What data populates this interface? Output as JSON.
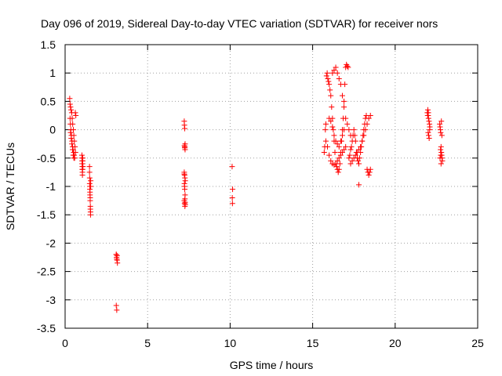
{
  "chart_data": {
    "type": "scatter",
    "title": "Day 096 of 2019, Sidereal Day-to-day VTEC variation (SDTVAR) for receiver nors",
    "xlabel": "GPS time / hours",
    "ylabel": "SDTVAR / TECUs",
    "xlim": [
      0,
      25
    ],
    "ylim": [
      -3.5,
      1.5
    ],
    "xticks": [
      0,
      5,
      10,
      15,
      20,
      25
    ],
    "yticks": [
      -3.5,
      -3,
      -2.5,
      -2,
      -1.5,
      -1,
      -0.5,
      0,
      0.5,
      1,
      1.5
    ],
    "xtick_labels": [
      "0",
      "5",
      "10",
      "15",
      "20",
      "25"
    ],
    "ytick_labels": [
      "-3.5",
      "-3",
      "-2.5",
      "-2",
      "-1.5",
      "-1",
      "-0.5",
      "0",
      "0.5",
      "1",
      "1.5"
    ],
    "grid": true,
    "marker": "+",
    "color": "#ff0000",
    "series": [
      {
        "name": "SDTVAR",
        "x": [
          0.28,
          0.3,
          0.33,
          0.36,
          0.4,
          0.43,
          0.46,
          0.5,
          0.53,
          0.56,
          0.6,
          0.63,
          0.3,
          0.32,
          0.35,
          0.38,
          0.42,
          0.45,
          0.48,
          0.52,
          0.55,
          0.58,
          0.62,
          0.65,
          0.33,
          0.37,
          0.41,
          0.45,
          0.49,
          0.53,
          1.02,
          1.02,
          1.03,
          1.03,
          1.04,
          1.04,
          1.05,
          1.05,
          1.06,
          1.06,
          1.07,
          1.07,
          1.08,
          1.48,
          1.48,
          1.49,
          1.49,
          1.5,
          1.5,
          1.51,
          1.51,
          1.52,
          1.52,
          1.53,
          1.53,
          1.54,
          1.54,
          1.55,
          1.55,
          3.1,
          3.12,
          3.15,
          3.17,
          3.1,
          3.13,
          3.15,
          3.1,
          3.13,
          7.22,
          7.23,
          7.25,
          7.27,
          7.25,
          7.27,
          7.22,
          7.24,
          7.26,
          7.28,
          7.23,
          7.25,
          7.27,
          7.22,
          7.24,
          7.26,
          7.28,
          7.23,
          7.25,
          7.27,
          7.22,
          7.24,
          7.26,
          10.12,
          10.15,
          10.13,
          10.14,
          15.7,
          15.73,
          15.77,
          15.8,
          15.84,
          15.88,
          15.92,
          15.96,
          16.0,
          16.05,
          16.1,
          16.15,
          16.2,
          16.25,
          16.3,
          16.35,
          16.4,
          16.45,
          16.5,
          16.55,
          16.6,
          16.65,
          16.7,
          16.75,
          16.8,
          16.85,
          16.9,
          16.95,
          17.0,
          17.05,
          17.1,
          17.15,
          17.2,
          17.25,
          17.3,
          17.35,
          17.4,
          17.45,
          17.5,
          17.55,
          17.6,
          17.65,
          17.7,
          17.75,
          17.8,
          17.85,
          17.9,
          17.95,
          18.0,
          18.05,
          18.1,
          18.15,
          18.2,
          18.25,
          18.3,
          18.35,
          18.4,
          18.45,
          18.5,
          15.8,
          15.9,
          16.0,
          16.1,
          16.2,
          16.3,
          16.4,
          16.5,
          16.6,
          16.7,
          16.8,
          16.9,
          17.0,
          16.0,
          16.1,
          16.2,
          16.3,
          16.4,
          16.5,
          16.6,
          16.7,
          16.8,
          16.9,
          16.2,
          16.3,
          16.4,
          16.5,
          16.6,
          16.7,
          16.8,
          16.9,
          17.0,
          17.1,
          17.2,
          17.3,
          17.3,
          17.4,
          17.5,
          17.6,
          17.7,
          17.8,
          17.9,
          18.0,
          18.1,
          18.2,
          18.3,
          18.4,
          18.5,
          17.8,
          21.95,
          21.98,
          22.0,
          22.02,
          22.05,
          22.08,
          22.1,
          22.0,
          22.03,
          22.06,
          22.09,
          21.97,
          22.01,
          22.7,
          22.72,
          22.74,
          22.76,
          22.78,
          22.8,
          22.82,
          22.84,
          22.86,
          22.75,
          22.78,
          22.8,
          22.83,
          22.72,
          22.76
        ],
        "y": [
          0.55,
          0.45,
          0.4,
          0.35,
          0.3,
          0.2,
          0.1,
          0.0,
          -0.1,
          -0.2,
          -0.3,
          -0.4,
          0.2,
          0.1,
          0.0,
          -0.1,
          -0.2,
          -0.3,
          -0.35,
          -0.4,
          -0.45,
          -0.5,
          0.3,
          0.25,
          -0.05,
          -0.15,
          -0.25,
          -0.35,
          -0.45,
          -0.5,
          -0.45,
          -0.5,
          -0.55,
          -0.6,
          -0.65,
          -0.7,
          -0.75,
          -0.8,
          -0.6,
          -0.7,
          -0.5,
          -0.55,
          -0.65,
          -0.65,
          -0.75,
          -0.85,
          -0.95,
          -1.0,
          -1.05,
          -1.1,
          -1.15,
          -1.2,
          -1.25,
          -1.35,
          -1.4,
          -1.45,
          -1.5,
          -0.9,
          -1.0,
          -2.2,
          -2.25,
          -2.3,
          -2.35,
          -2.2,
          -2.28,
          -2.22,
          -3.1,
          -3.18,
          0.15,
          0.08,
          0.02,
          -0.25,
          -0.3,
          -0.35,
          -0.75,
          -0.8,
          -0.85,
          -0.9,
          -0.95,
          -1.05,
          -1.15,
          -1.25,
          -1.3,
          -1.35,
          -1.32,
          -0.28,
          -0.32,
          -1.28,
          -0.78,
          -1.0,
          -1.22,
          -0.65,
          -1.05,
          -1.2,
          -1.3,
          -0.4,
          -0.3,
          0.0,
          0.1,
          0.95,
          1.0,
          0.9,
          0.85,
          0.8,
          0.7,
          0.6,
          0.4,
          0.2,
          0.0,
          -0.2,
          -0.4,
          -0.6,
          -0.65,
          -0.7,
          -0.75,
          -0.7,
          -0.6,
          -0.4,
          -0.2,
          0.0,
          0.2,
          0.5,
          0.8,
          1.1,
          1.15,
          1.12,
          1.1,
          -0.5,
          -0.45,
          -0.35,
          -0.3,
          -0.2,
          -0.1,
          0.0,
          -0.1,
          -0.2,
          -0.4,
          -0.5,
          -0.55,
          -0.6,
          -0.5,
          -0.4,
          -0.3,
          -0.2,
          -0.1,
          0.0,
          0.1,
          0.2,
          0.25,
          -0.7,
          -0.75,
          -0.8,
          -0.75,
          -0.7,
          -0.2,
          -0.3,
          -0.45,
          -0.55,
          -0.6,
          -0.62,
          -0.6,
          -0.55,
          -0.5,
          -0.45,
          -0.4,
          -0.35,
          -0.3,
          0.2,
          0.15,
          0.05,
          -0.1,
          -0.2,
          -0.25,
          -0.3,
          -0.2,
          -0.1,
          0.0,
          1.0,
          1.05,
          1.1,
          1.0,
          0.9,
          0.8,
          0.6,
          0.4,
          0.2,
          0.1,
          0.0,
          -0.1,
          -0.6,
          -0.55,
          -0.5,
          -0.45,
          -0.4,
          -0.35,
          -0.3,
          -0.2,
          -0.1,
          0.0,
          0.1,
          0.2,
          0.25,
          -0.97,
          0.3,
          0.35,
          0.25,
          0.2,
          0.15,
          0.1,
          0.05,
          -0.05,
          -0.1,
          -0.15,
          0.0,
          0.25,
          0.3,
          0.1,
          0.05,
          0.0,
          -0.05,
          -0.3,
          -0.4,
          -0.45,
          -0.5,
          -0.55,
          -0.35,
          -0.6,
          0.15,
          -0.1,
          -0.5,
          -0.45
        ]
      }
    ]
  }
}
